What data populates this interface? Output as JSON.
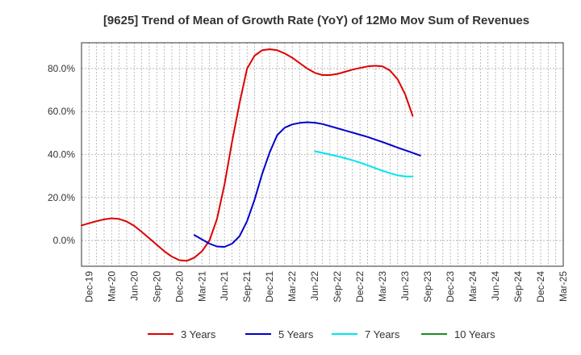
{
  "chart_data": {
    "type": "line",
    "title": "[9625]  Trend of Mean of Growth Rate (YoY) of 12Mo Mov Sum of Revenues",
    "xlabel": "",
    "ylabel": "",
    "x_ticks": [
      "Dec-19",
      "Mar-20",
      "Jun-20",
      "Sep-20",
      "Dec-20",
      "Mar-21",
      "Jun-21",
      "Sep-21",
      "Dec-21",
      "Mar-22",
      "Jun-22",
      "Sep-22",
      "Dec-22",
      "Mar-23",
      "Jun-23",
      "Sep-23",
      "Dec-23",
      "Mar-24",
      "Jun-24",
      "Sep-24",
      "Dec-24",
      "Mar-25"
    ],
    "y_ticks": [
      "0.0%",
      "20.0%",
      "40.0%",
      "60.0%",
      "80.0%"
    ],
    "ylim": [
      -12,
      92
    ],
    "grid": true,
    "legend_position": "bottom",
    "series": [
      {
        "name": "3 Years",
        "color": "#dd0000",
        "values": [
          [
            0,
            7
          ],
          [
            1,
            8
          ],
          [
            2,
            9
          ],
          [
            3,
            9.8
          ],
          [
            4,
            10.3
          ],
          [
            5,
            10
          ],
          [
            6,
            8.8
          ],
          [
            7,
            6.8
          ],
          [
            8,
            4
          ],
          [
            9,
            1
          ],
          [
            10,
            -2
          ],
          [
            11,
            -5
          ],
          [
            12,
            -7.5
          ],
          [
            13,
            -9.2
          ],
          [
            14,
            -9.5
          ],
          [
            15,
            -8
          ],
          [
            16,
            -5
          ],
          [
            17,
            0
          ],
          [
            18,
            10
          ],
          [
            19,
            26
          ],
          [
            20,
            46
          ],
          [
            21,
            64
          ],
          [
            22,
            80
          ],
          [
            23,
            86
          ],
          [
            24,
            88.5
          ],
          [
            25,
            89
          ],
          [
            26,
            88.5
          ],
          [
            27,
            87
          ],
          [
            28,
            85
          ],
          [
            29,
            82.5
          ],
          [
            30,
            80
          ],
          [
            31,
            78
          ],
          [
            32,
            77
          ],
          [
            33,
            77
          ],
          [
            34,
            77.5
          ],
          [
            35,
            78.5
          ],
          [
            36,
            79.5
          ],
          [
            37,
            80.3
          ],
          [
            38,
            81
          ],
          [
            39,
            81.3
          ],
          [
            40,
            81
          ],
          [
            41,
            79
          ],
          [
            42,
            75
          ],
          [
            43,
            68
          ],
          [
            44,
            58
          ]
        ]
      },
      {
        "name": "5 Years",
        "color": "#0000cc",
        "values": [
          [
            15,
            2.5
          ],
          [
            16,
            0.5
          ],
          [
            17,
            -1.5
          ],
          [
            18,
            -2.8
          ],
          [
            19,
            -3
          ],
          [
            20,
            -1.5
          ],
          [
            21,
            2
          ],
          [
            22,
            9
          ],
          [
            23,
            19
          ],
          [
            24,
            31
          ],
          [
            25,
            41
          ],
          [
            26,
            49
          ],
          [
            27,
            52.5
          ],
          [
            28,
            54
          ],
          [
            29,
            54.7
          ],
          [
            30,
            55
          ],
          [
            31,
            54.8
          ],
          [
            32,
            54.2
          ],
          [
            33,
            53.2
          ],
          [
            34,
            52.2
          ],
          [
            35,
            51.2
          ],
          [
            36,
            50.2
          ],
          [
            37,
            49.2
          ],
          [
            38,
            48.2
          ],
          [
            39,
            47
          ],
          [
            40,
            45.8
          ],
          [
            41,
            44.5
          ],
          [
            42,
            43.2
          ],
          [
            43,
            42
          ],
          [
            44,
            40.8
          ],
          [
            45,
            39.5
          ]
        ]
      },
      {
        "name": "7 Years",
        "color": "#00e5ee",
        "values": [
          [
            31,
            41.5
          ],
          [
            32,
            40.8
          ],
          [
            33,
            40
          ],
          [
            34,
            39.2
          ],
          [
            35,
            38.3
          ],
          [
            36,
            37.3
          ],
          [
            37,
            36.2
          ],
          [
            38,
            35
          ],
          [
            39,
            33.7
          ],
          [
            40,
            32.4
          ],
          [
            41,
            31.3
          ],
          [
            42,
            30.3
          ],
          [
            43,
            29.8
          ],
          [
            44,
            29.8
          ]
        ]
      },
      {
        "name": "10 Years",
        "color": "#228b22",
        "values": []
      }
    ]
  }
}
